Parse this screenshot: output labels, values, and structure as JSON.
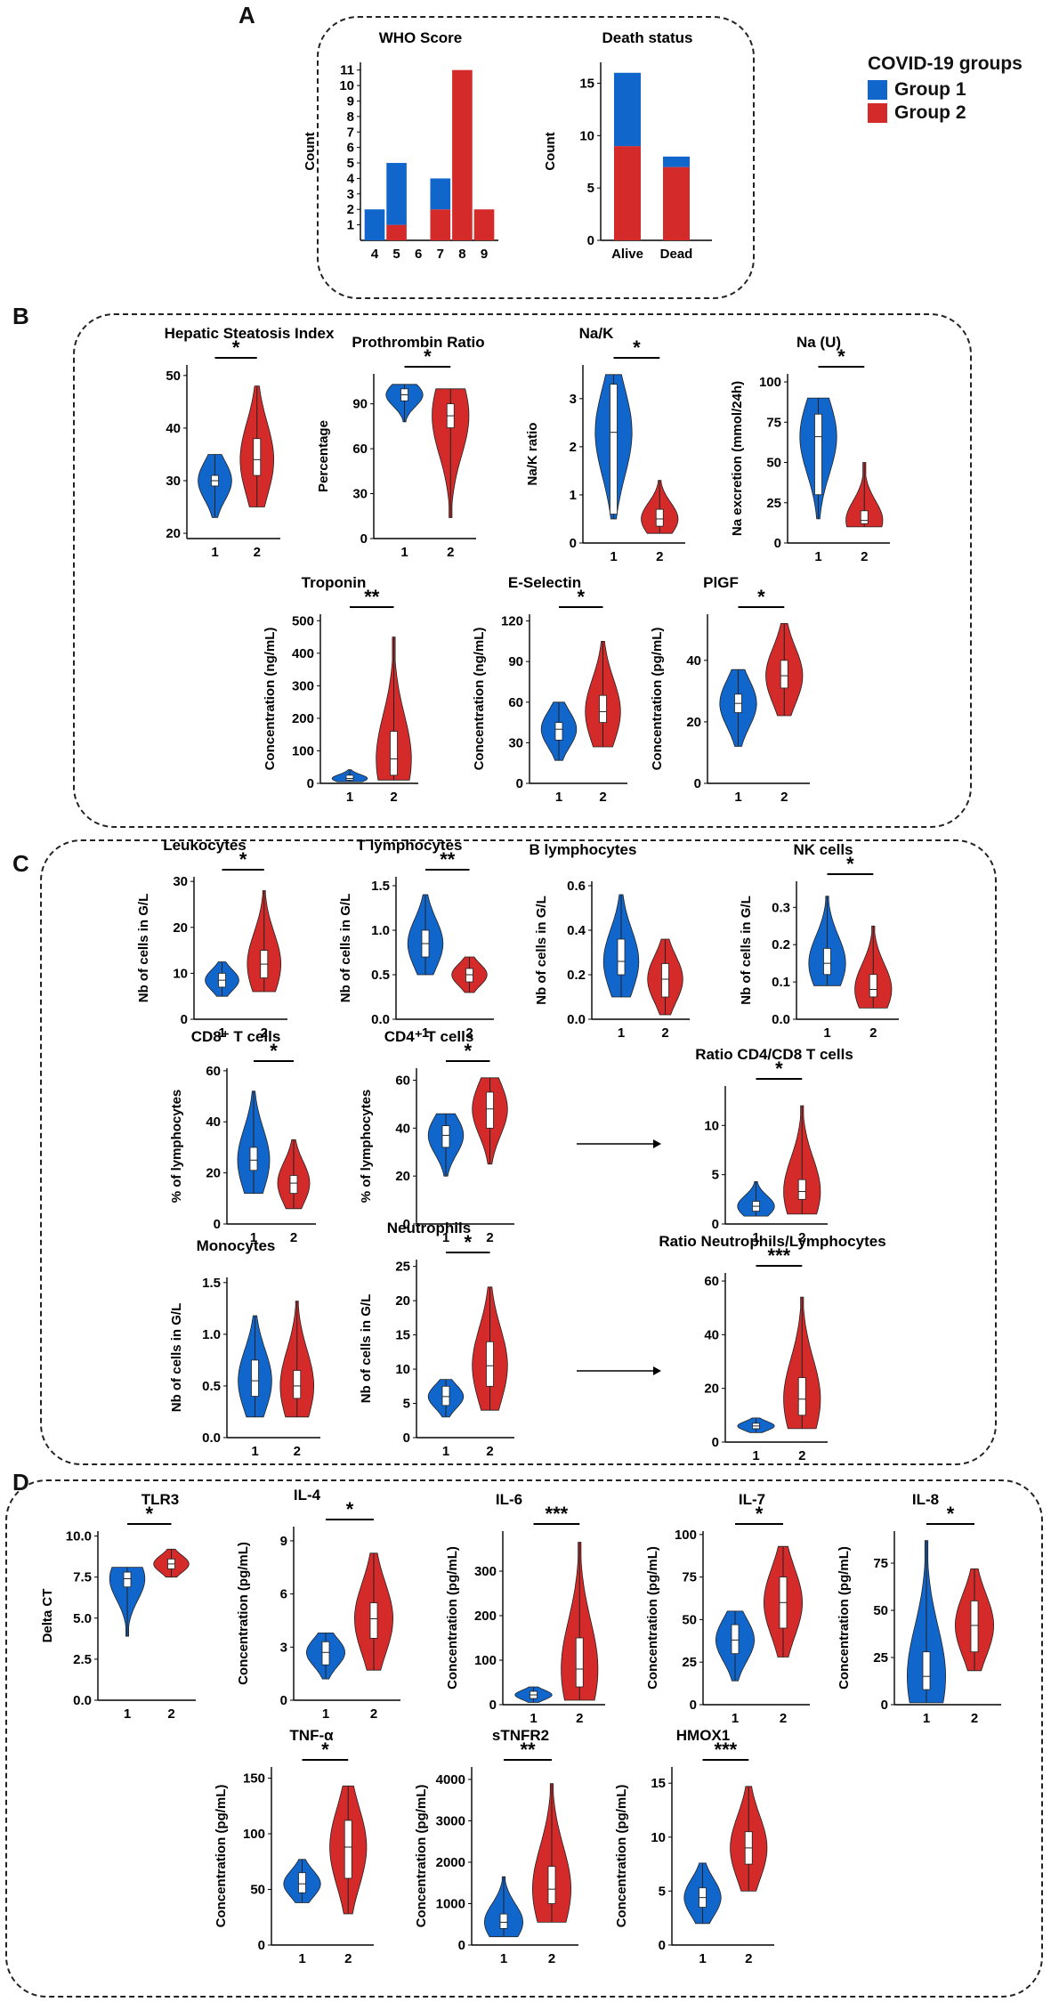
{
  "panels": {
    "A": "A",
    "B": "B",
    "C": "C",
    "D": "D"
  },
  "legend": {
    "title": "COVID-19 groups",
    "items": [
      {
        "label": "Group 1",
        "color": "#1166cc"
      },
      {
        "label": "Group 2",
        "color": "#d42a2a"
      }
    ]
  },
  "colors": {
    "group1": "#1166cc",
    "group2": "#d42a2a"
  },
  "chart_data": [
    {
      "id": "who",
      "type": "bar",
      "title": "WHO Score",
      "ylabel": "Count",
      "categories": [
        "4",
        "5",
        "6",
        "7",
        "8",
        "9"
      ],
      "series": [
        {
          "name": "Group 1",
          "values": [
            2,
            4,
            0,
            2,
            0,
            0
          ]
        },
        {
          "name": "Group 2",
          "values": [
            0,
            1,
            0,
            2,
            11,
            2
          ]
        }
      ],
      "yticks": [
        "1",
        "2",
        "3",
        "4",
        "5",
        "6",
        "7",
        "8",
        "9",
        "10",
        "11"
      ],
      "ylim": [
        0,
        11.5
      ]
    },
    {
      "id": "death",
      "type": "bar",
      "title": "Death status",
      "ylabel": "Count",
      "categories": [
        "Alive",
        "Dead"
      ],
      "series": [
        {
          "name": "Group 1",
          "values": [
            7,
            1
          ]
        },
        {
          "name": "Group 2",
          "values": [
            9,
            7
          ]
        }
      ],
      "yticks": [
        "0",
        "5",
        "10",
        "15"
      ],
      "ylim": [
        0,
        17
      ]
    },
    {
      "id": "hsi",
      "type": "violin",
      "title": "Hepatic Steatosis Index",
      "ylabel": "",
      "sig": "*",
      "yticks": [
        "20",
        "30",
        "40",
        "50"
      ],
      "ylim": [
        19,
        52
      ],
      "groups": [
        {
          "min": 23,
          "max": 35,
          "q1": 29,
          "med": 30,
          "q3": 31
        },
        {
          "min": 25,
          "max": 48,
          "q1": 31,
          "med": 34,
          "q3": 38
        }
      ]
    },
    {
      "id": "pr",
      "type": "violin",
      "title": "Prothrombin Ratio",
      "ylabel": "Percentage",
      "sig": "*",
      "yticks": [
        "0",
        "30",
        "60",
        "90"
      ],
      "ylim": [
        0,
        110
      ],
      "groups": [
        {
          "min": 78,
          "max": 103,
          "q1": 92,
          "med": 96,
          "q3": 100
        },
        {
          "min": 14,
          "max": 100,
          "q1": 74,
          "med": 82,
          "q3": 90
        }
      ]
    },
    {
      "id": "nak",
      "type": "violin",
      "title": "Na/K",
      "ylabel": "Na/K ratio",
      "sig": "*",
      "yticks": [
        "0",
        "1",
        "2",
        "3"
      ],
      "ylim": [
        0,
        3.7
      ],
      "groups": [
        {
          "min": 0.5,
          "max": 3.5,
          "q1": 0.6,
          "med": 2.3,
          "q3": 3.3
        },
        {
          "min": 0.2,
          "max": 1.3,
          "q1": 0.35,
          "med": 0.5,
          "q3": 0.7
        }
      ]
    },
    {
      "id": "nau",
      "type": "violin",
      "title": "Na (U)",
      "ylabel": "Na excretion (mmol/24h)",
      "sig": "*",
      "yticks": [
        "0",
        "25",
        "50",
        "75",
        "100"
      ],
      "ylim": [
        0,
        105
      ],
      "groups": [
        {
          "min": 15,
          "max": 90,
          "q1": 30,
          "med": 66,
          "q3": 80
        },
        {
          "min": 10,
          "max": 50,
          "q1": 12,
          "med": 14,
          "q3": 20
        }
      ]
    },
    {
      "id": "trop",
      "type": "violin",
      "title": "Troponin",
      "ylabel": "Concentration (ng/mL)",
      "sig": "**",
      "yticks": [
        "0",
        "100",
        "200",
        "300",
        "400",
        "500"
      ],
      "ylim": [
        0,
        520
      ],
      "groups": [
        {
          "min": 5,
          "max": 42,
          "q1": 10,
          "med": 15,
          "q3": 25
        },
        {
          "min": 10,
          "max": 450,
          "q1": 25,
          "med": 75,
          "q3": 160
        }
      ]
    },
    {
      "id": "esel",
      "type": "violin",
      "title": "E-Selectin",
      "ylabel": "Concentration (ng/mL)",
      "sig": "*",
      "yticks": [
        "0",
        "30",
        "60",
        "90",
        "120"
      ],
      "ylim": [
        0,
        125
      ],
      "groups": [
        {
          "min": 17,
          "max": 60,
          "q1": 32,
          "med": 40,
          "q3": 45
        },
        {
          "min": 27,
          "max": 105,
          "q1": 45,
          "med": 53,
          "q3": 65
        }
      ]
    },
    {
      "id": "plgf",
      "type": "violin",
      "title": "PlGF",
      "ylabel": "Concentration (pg/mL)",
      "sig": "*",
      "yticks": [
        "0",
        "20",
        "40"
      ],
      "ylim": [
        0,
        55
      ],
      "groups": [
        {
          "min": 12,
          "max": 37,
          "q1": 23,
          "med": 26,
          "q3": 29
        },
        {
          "min": 22,
          "max": 52,
          "q1": 31,
          "med": 35,
          "q3": 40
        }
      ]
    },
    {
      "id": "leuko",
      "type": "violin",
      "title": "Leukocytes",
      "ylabel": "Nb of cells in G/L",
      "sig": "*",
      "yticks": [
        "0",
        "10",
        "20",
        "30"
      ],
      "ylim": [
        0,
        31
      ],
      "groups": [
        {
          "min": 5,
          "max": 12.5,
          "q1": 7,
          "med": 8.5,
          "q3": 10
        },
        {
          "min": 6,
          "max": 28,
          "q1": 9,
          "med": 12,
          "q3": 15
        }
      ]
    },
    {
      "id": "tly",
      "type": "violin",
      "title": "T lymphocytes",
      "ylabel": "Nb of cells in G/L",
      "sig": "**",
      "yticks": [
        "0.0",
        "0.5",
        "1.0",
        "1.5"
      ],
      "ylim": [
        0,
        1.6
      ],
      "groups": [
        {
          "min": 0.5,
          "max": 1.4,
          "q1": 0.7,
          "med": 0.85,
          "q3": 1.0
        },
        {
          "min": 0.3,
          "max": 0.7,
          "q1": 0.42,
          "med": 0.5,
          "q3": 0.57
        }
      ]
    },
    {
      "id": "bly",
      "type": "violin",
      "title": "B lymphocytes",
      "ylabel": "Nb of cells in G/L",
      "sig": "",
      "yticks": [
        "0.0",
        "0.2",
        "0.4",
        "0.6"
      ],
      "ylim": [
        0,
        0.62
      ],
      "groups": [
        {
          "min": 0.1,
          "max": 0.56,
          "q1": 0.2,
          "med": 0.26,
          "q3": 0.36
        },
        {
          "min": 0.02,
          "max": 0.36,
          "q1": 0.1,
          "med": 0.18,
          "q3": 0.25
        }
      ]
    },
    {
      "id": "nk",
      "type": "violin",
      "title": "NK cells",
      "ylabel": "Nb of cells in G/L",
      "sig": "*",
      "yticks": [
        "0.0",
        "0.1",
        "0.2",
        "0.3"
      ],
      "ylim": [
        0,
        0.37
      ],
      "groups": [
        {
          "min": 0.09,
          "max": 0.33,
          "q1": 0.12,
          "med": 0.15,
          "q3": 0.19
        },
        {
          "min": 0.03,
          "max": 0.25,
          "q1": 0.06,
          "med": 0.08,
          "q3": 0.12
        }
      ]
    },
    {
      "id": "cd8",
      "type": "violin",
      "title": "CD8⁺ T cells",
      "ylabel": "% of lymphocytes",
      "sig": "*",
      "yticks": [
        "0",
        "20",
        "40",
        "60"
      ],
      "ylim": [
        0,
        61
      ],
      "groups": [
        {
          "min": 12,
          "max": 52,
          "q1": 21,
          "med": 25,
          "q3": 30
        },
        {
          "min": 6,
          "max": 33,
          "q1": 12,
          "med": 16,
          "q3": 19
        }
      ]
    },
    {
      "id": "cd4",
      "type": "violin",
      "title": "CD4⁺ T cells",
      "ylabel": "% of lymphocytes",
      "sig": "*",
      "yticks": [
        "0",
        "20",
        "40",
        "60"
      ],
      "ylim": [
        0,
        65
      ],
      "groups": [
        {
          "min": 20,
          "max": 46,
          "q1": 32,
          "med": 37,
          "q3": 41
        },
        {
          "min": 25,
          "max": 61,
          "q1": 40,
          "med": 48,
          "q3": 55
        }
      ]
    },
    {
      "id": "cd4cd8",
      "type": "violin",
      "title": "Ratio CD4/CD8 T cells",
      "ylabel": "",
      "sig": "*",
      "yticks": [
        "0",
        "5",
        "10"
      ],
      "ylim": [
        0,
        14
      ],
      "groups": [
        {
          "min": 0.8,
          "max": 4.3,
          "q1": 1.3,
          "med": 1.8,
          "q3": 2.3
        },
        {
          "min": 1,
          "max": 12,
          "q1": 2.5,
          "med": 3.3,
          "q3": 4.5
        }
      ]
    },
    {
      "id": "mono",
      "type": "violin",
      "title": "Monocytes",
      "ylabel": "Nb of cells in G/L",
      "sig": "",
      "yticks": [
        "0.0",
        "0.5",
        "1.0",
        "1.5"
      ],
      "ylim": [
        0,
        1.55
      ],
      "groups": [
        {
          "min": 0.2,
          "max": 1.18,
          "q1": 0.4,
          "med": 0.55,
          "q3": 0.75
        },
        {
          "min": 0.2,
          "max": 1.32,
          "q1": 0.38,
          "med": 0.5,
          "q3": 0.65
        }
      ]
    },
    {
      "id": "neut",
      "type": "violin",
      "title": "Neutrophils",
      "ylabel": "Nb of cells in G/L",
      "sig": "*",
      "yticks": [
        "0",
        "5",
        "10",
        "15",
        "20",
        "25"
      ],
      "ylim": [
        0,
        26
      ],
      "groups": [
        {
          "min": 3,
          "max": 8.5,
          "q1": 4.7,
          "med": 6,
          "q3": 7.5
        },
        {
          "min": 4,
          "max": 22,
          "q1": 7.5,
          "med": 10.5,
          "q3": 14
        }
      ]
    },
    {
      "id": "nlr",
      "type": "violin",
      "title": "Ratio Neutrophils/Lymphocytes",
      "ylabel": "",
      "sig": "***",
      "yticks": [
        "0",
        "20",
        "40",
        "60"
      ],
      "ylim": [
        0,
        63
      ],
      "groups": [
        {
          "min": 3.5,
          "max": 9,
          "q1": 5,
          "med": 6,
          "q3": 7
        },
        {
          "min": 5,
          "max": 54,
          "q1": 10,
          "med": 16,
          "q3": 24
        }
      ]
    },
    {
      "id": "tlr3",
      "type": "violin",
      "title": "TLR3",
      "ylabel": "Delta CT",
      "sig": "*",
      "yticks": [
        "0.0",
        "2.5",
        "5.0",
        "7.5",
        "10.0"
      ],
      "ylim": [
        0,
        10.3
      ],
      "groups": [
        {
          "min": 3.9,
          "max": 8.1,
          "q1": 6.9,
          "med": 7.4,
          "q3": 7.8
        },
        {
          "min": 7.5,
          "max": 9.2,
          "q1": 8.0,
          "med": 8.3,
          "q3": 8.6
        }
      ]
    },
    {
      "id": "il4",
      "type": "violin",
      "title": "IL-4",
      "ylabel": "Concentration (pg/mL)",
      "sig": "*",
      "yticks": [
        "0",
        "3",
        "6",
        "9"
      ],
      "ylim": [
        0,
        9.8
      ],
      "groups": [
        {
          "min": 1.2,
          "max": 3.8,
          "q1": 2.0,
          "med": 2.7,
          "q3": 3.3
        },
        {
          "min": 1.7,
          "max": 8.3,
          "q1": 3.5,
          "med": 4.6,
          "q3": 5.5
        }
      ]
    },
    {
      "id": "il6",
      "type": "violin",
      "title": "IL-6",
      "ylabel": "Concentration (pg/mL)",
      "sig": "***",
      "yticks": [
        "0",
        "100",
        "200",
        "300"
      ],
      "ylim": [
        0,
        390
      ],
      "groups": [
        {
          "min": 5,
          "max": 40,
          "q1": 14,
          "med": 22,
          "q3": 30
        },
        {
          "min": 10,
          "max": 365,
          "q1": 40,
          "med": 80,
          "q3": 150
        }
      ]
    },
    {
      "id": "il7",
      "type": "violin",
      "title": "IL-7",
      "ylabel": "Concentration (pg/mL)",
      "sig": "*",
      "yticks": [
        "0",
        "25",
        "50",
        "75",
        "100"
      ],
      "ylim": [
        0,
        102
      ],
      "groups": [
        {
          "min": 14,
          "max": 55,
          "q1": 30,
          "med": 38,
          "q3": 47
        },
        {
          "min": 28,
          "max": 93,
          "q1": 45,
          "med": 60,
          "q3": 75
        }
      ]
    },
    {
      "id": "il8",
      "type": "violin",
      "title": "IL-8",
      "ylabel": "Concentration (pg/mL)",
      "sig": "*",
      "yticks": [
        "0",
        "25",
        "50",
        "75"
      ],
      "ylim": [
        0,
        92
      ],
      "groups": [
        {
          "min": 1,
          "max": 87,
          "q1": 8,
          "med": 15,
          "q3": 28
        },
        {
          "min": 18,
          "max": 72,
          "q1": 28,
          "med": 42,
          "q3": 55
        }
      ]
    },
    {
      "id": "tnf",
      "type": "violin",
      "title": "TNF-α",
      "ylabel": "Concentration (pg/mL)",
      "sig": "*",
      "yticks": [
        "0",
        "50",
        "100",
        "150"
      ],
      "ylim": [
        0,
        160
      ],
      "groups": [
        {
          "min": 38,
          "max": 77,
          "q1": 47,
          "med": 55,
          "q3": 65
        },
        {
          "min": 28,
          "max": 143,
          "q1": 60,
          "med": 88,
          "q3": 112
        }
      ]
    },
    {
      "id": "stnfr2",
      "type": "violin",
      "title": "sTNFR2",
      "ylabel": "Concentration (pg/mL)",
      "sig": "**",
      "yticks": [
        "0",
        "1000",
        "2000",
        "3000",
        "4000"
      ],
      "ylim": [
        0,
        4300
      ],
      "groups": [
        {
          "min": 200,
          "max": 1650,
          "q1": 400,
          "med": 550,
          "q3": 750
        },
        {
          "min": 550,
          "max": 3900,
          "q1": 1000,
          "med": 1350,
          "q3": 1900
        }
      ]
    },
    {
      "id": "hmox1",
      "type": "violin",
      "title": "HMOX1",
      "ylabel": "Concentration (pg/mL)",
      "sig": "***",
      "yticks": [
        "0",
        "5",
        "10",
        "15"
      ],
      "ylim": [
        0,
        16.5
      ],
      "groups": [
        {
          "min": 2,
          "max": 7.6,
          "q1": 3.5,
          "med": 4.4,
          "q3": 5.3
        },
        {
          "min": 5,
          "max": 14.7,
          "q1": 7.5,
          "med": 9,
          "q3": 10.5
        }
      ]
    }
  ]
}
